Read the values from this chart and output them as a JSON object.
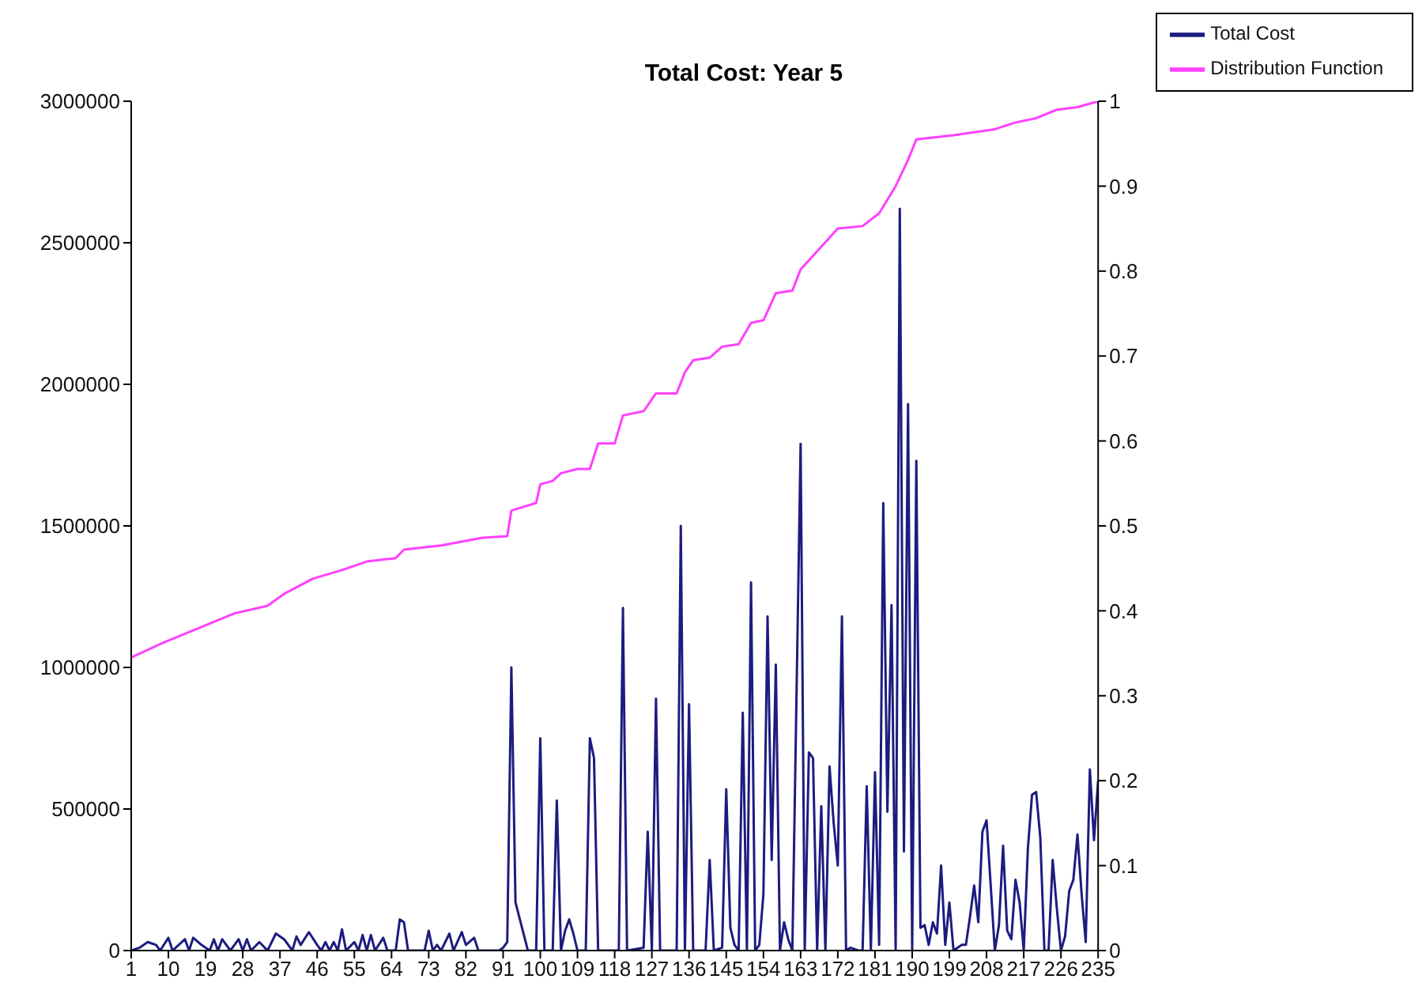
{
  "chart_data": {
    "type": "line",
    "title": "Total Cost: Year 5",
    "legend": "top right",
    "marker": "none",
    "line_style": "solid",
    "xlim": [
      1,
      235
    ],
    "xticks": [
      1,
      10,
      19,
      28,
      37,
      46,
      55,
      64,
      73,
      82,
      91,
      100,
      109,
      118,
      127,
      136,
      145,
      154,
      163,
      172,
      181,
      190,
      199,
      208,
      217,
      226,
      235
    ],
    "ylim": [
      0,
      3000000
    ],
    "yticks": [
      0,
      500000,
      1000000,
      1500000,
      2000000,
      2500000,
      3000000
    ],
    "y2lim": [
      0,
      1
    ],
    "y2ticks": [
      0,
      0.1,
      0.2,
      0.3,
      0.4,
      0.5,
      0.6,
      0.7,
      0.8,
      0.9,
      1
    ],
    "series": [
      {
        "name": "Total Cost",
        "color": "#1c1c80",
        "x": [
          1,
          3,
          5,
          7,
          8,
          10,
          11,
          14,
          15,
          16,
          18,
          20,
          21,
          22,
          23,
          25,
          27,
          28,
          29,
          30,
          32,
          34,
          36,
          38,
          40,
          41,
          42,
          44,
          46,
          47,
          48,
          49,
          50,
          51,
          52,
          53,
          55,
          56,
          57,
          58,
          59,
          60,
          62,
          63,
          65,
          66,
          67,
          68,
          72,
          73,
          74,
          75,
          76,
          78,
          79,
          81,
          82,
          84,
          85,
          90,
          91,
          92,
          93,
          94,
          97,
          99,
          100,
          101,
          103,
          104,
          105,
          106,
          107,
          108,
          109,
          111,
          112,
          113,
          114,
          119,
          120,
          121,
          125,
          126,
          127,
          128,
          129,
          133,
          134,
          135,
          136,
          137,
          140,
          141,
          142,
          144,
          145,
          146,
          147,
          148,
          149,
          150,
          151,
          152,
          153,
          154,
          155,
          156,
          157,
          158,
          159,
          160,
          161,
          163,
          164,
          165,
          166,
          167,
          168,
          169,
          170,
          171,
          172,
          173,
          174,
          175,
          177,
          178,
          179,
          180,
          181,
          182,
          183,
          184,
          185,
          186,
          187,
          188,
          189,
          190,
          191,
          192,
          193,
          194,
          195,
          196,
          197,
          198,
          199,
          200,
          202,
          203,
          204,
          205,
          206,
          207,
          208,
          209,
          210,
          211,
          212,
          213,
          214,
          215,
          216,
          217,
          218,
          219,
          220,
          221,
          222,
          223,
          224,
          225,
          226,
          227,
          228,
          229,
          230,
          231,
          232,
          233,
          234,
          235
        ],
        "values": [
          0,
          10000,
          30000,
          20000,
          0,
          45000,
          0,
          40000,
          0,
          45000,
          20000,
          0,
          40000,
          0,
          40000,
          0,
          40000,
          0,
          40000,
          0,
          30000,
          0,
          60000,
          40000,
          0,
          50000,
          20000,
          65000,
          20000,
          0,
          30000,
          0,
          30000,
          0,
          75000,
          0,
          30000,
          0,
          55000,
          0,
          55000,
          0,
          45000,
          0,
          0,
          110000,
          100000,
          0,
          0,
          70000,
          0,
          20000,
          0,
          60000,
          0,
          65000,
          20000,
          45000,
          0,
          0,
          10000,
          30000,
          1000000,
          170000,
          0,
          0,
          750000,
          0,
          0,
          530000,
          0,
          70000,
          110000,
          60000,
          0,
          0,
          750000,
          680000,
          0,
          0,
          1210000,
          0,
          10000,
          420000,
          0,
          890000,
          0,
          0,
          1500000,
          0,
          870000,
          0,
          0,
          320000,
          0,
          10000,
          570000,
          80000,
          20000,
          0,
          840000,
          0,
          1300000,
          0,
          20000,
          200000,
          1180000,
          320000,
          1010000,
          0,
          100000,
          40000,
          0,
          1790000,
          0,
          700000,
          680000,
          0,
          510000,
          0,
          650000,
          450000,
          300000,
          1180000,
          0,
          10000,
          0,
          0,
          580000,
          0,
          630000,
          20000,
          1580000,
          490000,
          1220000,
          0,
          2620000,
          350000,
          1930000,
          0,
          1730000,
          80000,
          90000,
          20000,
          100000,
          60000,
          300000,
          20000,
          170000,
          0,
          20000,
          20000,
          120000,
          230000,
          100000,
          420000,
          460000,
          230000,
          0,
          90000,
          370000,
          70000,
          40000,
          250000,
          170000,
          0,
          360000,
          550000,
          560000,
          400000,
          0,
          0,
          320000,
          150000,
          0,
          50000,
          210000,
          250000,
          410000,
          200000,
          30000,
          640000,
          390000,
          600000
        ]
      },
      {
        "name": "Distribution Function",
        "color": "#ff40ff",
        "axis": "y2",
        "x": [
          1,
          9,
          16,
          26,
          34,
          38,
          45,
          52,
          58,
          65,
          67,
          76,
          86,
          92,
          93,
          99,
          100,
          103,
          105,
          109,
          112,
          114,
          118,
          120,
          125,
          128,
          133,
          135,
          137,
          141,
          144,
          148,
          151,
          154,
          157,
          161,
          163,
          166,
          172,
          178,
          182,
          186,
          189,
          191,
          200,
          210,
          215,
          220,
          225,
          230,
          235
        ],
        "values": [
          0.345,
          0.363,
          0.377,
          0.397,
          0.406,
          0.42,
          0.438,
          0.448,
          0.458,
          0.462,
          0.472,
          0.477,
          0.486,
          0.488,
          0.518,
          0.527,
          0.549,
          0.553,
          0.562,
          0.567,
          0.567,
          0.597,
          0.597,
          0.63,
          0.635,
          0.656,
          0.656,
          0.681,
          0.695,
          0.698,
          0.711,
          0.714,
          0.739,
          0.742,
          0.774,
          0.777,
          0.802,
          0.818,
          0.85,
          0.853,
          0.868,
          0.9,
          0.931,
          0.955,
          0.96,
          0.967,
          0.975,
          0.98,
          0.99,
          0.993,
          1
        ]
      }
    ]
  }
}
